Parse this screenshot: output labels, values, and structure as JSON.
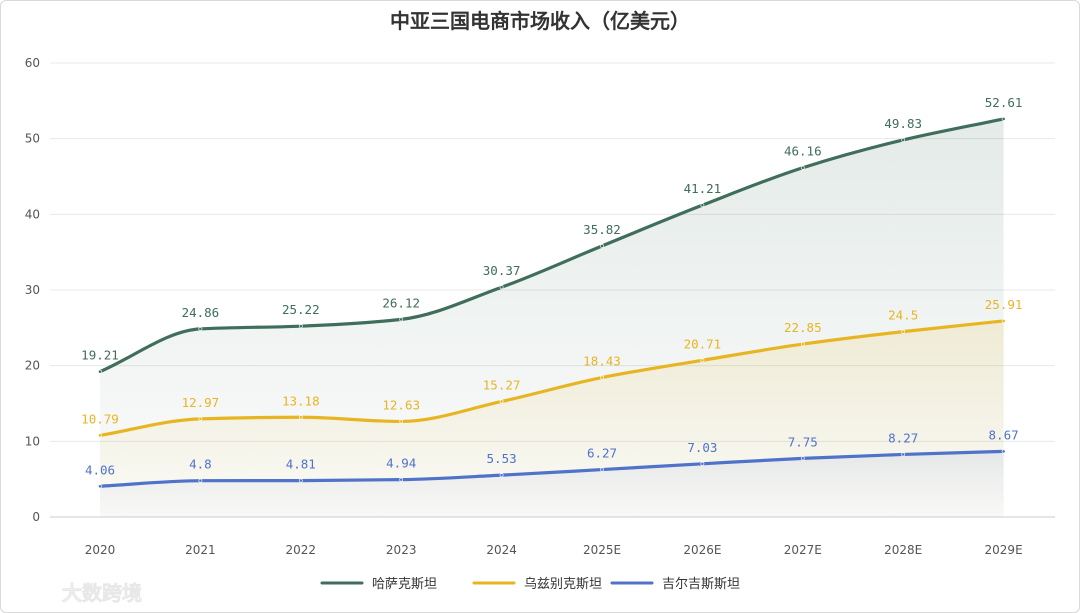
{
  "chart_data": {
    "type": "area",
    "title": "中亚三国电商市场收入（亿美元）",
    "xlabel": "",
    "ylabel": "",
    "ylim": [
      0,
      60
    ],
    "yticks": [
      0,
      10,
      20,
      30,
      40,
      50,
      60
    ],
    "grid": true,
    "legend_position": "bottom",
    "categories": [
      "2020",
      "2021",
      "2022",
      "2023",
      "2024",
      "2025E",
      "2026E",
      "2027E",
      "2028E",
      "2029E"
    ],
    "series": [
      {
        "name": "哈萨克斯坦",
        "color": "#3f6e5a",
        "values": [
          19.21,
          24.86,
          25.22,
          26.12,
          30.37,
          35.82,
          41.21,
          46.16,
          49.83,
          52.61
        ],
        "labels": [
          "19.21",
          "24.86",
          "25.22",
          "26.12",
          "30.37",
          "35.82",
          "41.21",
          "46.16",
          "49.83",
          "52.61"
        ]
      },
      {
        "name": "乌兹别克斯坦",
        "color": "#e8b522",
        "values": [
          10.79,
          12.97,
          13.18,
          12.63,
          15.27,
          18.43,
          20.71,
          22.85,
          24.5,
          25.91
        ],
        "labels": [
          "10.79",
          "12.97",
          "13.18",
          "12.63",
          "15.27",
          "18.43",
          "20.71",
          "22.85",
          "24.5",
          "25.91"
        ]
      },
      {
        "name": "吉尔吉斯斯坦",
        "color": "#4f73c9",
        "values": [
          4.06,
          4.8,
          4.81,
          4.94,
          5.53,
          6.27,
          7.03,
          7.75,
          8.27,
          8.67
        ],
        "labels": [
          "4.06",
          "4.8",
          "4.81",
          "4.94",
          "5.53",
          "6.27",
          "7.03",
          "7.75",
          "8.27",
          "8.67"
        ]
      }
    ]
  },
  "watermark": {
    "text": "大数跨境",
    "icon": "chat-bubble-logo-icon"
  }
}
